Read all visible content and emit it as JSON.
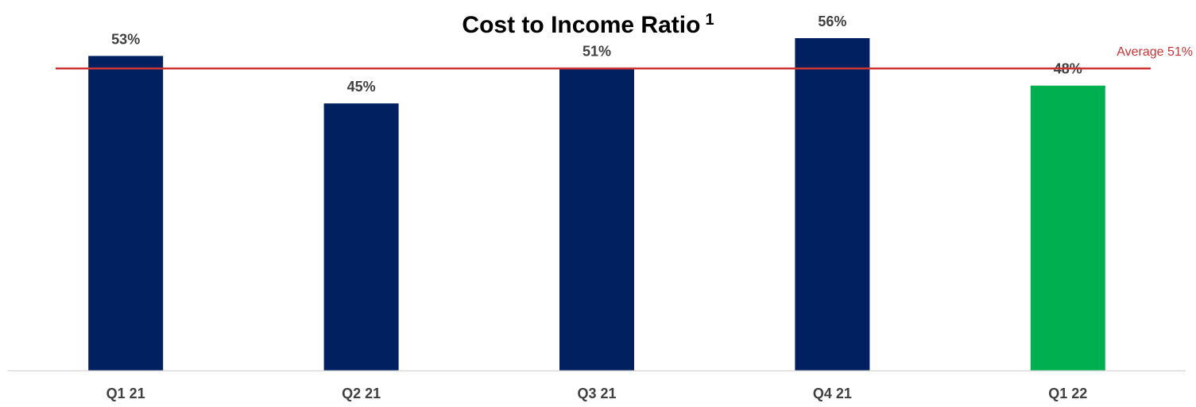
{
  "chart_data": {
    "type": "bar",
    "title": "Cost to Income Ratio",
    "title_superscript": "1",
    "categories": [
      "Q1 21",
      "Q2 21",
      "Q3 21",
      "Q4 21",
      "Q1 22"
    ],
    "values": [
      53,
      45,
      51,
      56,
      48
    ],
    "data_labels": [
      "53%",
      "45%",
      "51%",
      "56%",
      "48%"
    ],
    "ylim": [
      0,
      56
    ],
    "grid": false,
    "legend": "none",
    "bar_colors": [
      "#002060",
      "#002060",
      "#002060",
      "#002060",
      "#00B050"
    ],
    "reference_line": {
      "label": "Average 51%",
      "value": 50.9,
      "color": "#CC3333"
    },
    "axis_color": "#D9D9D9"
  }
}
